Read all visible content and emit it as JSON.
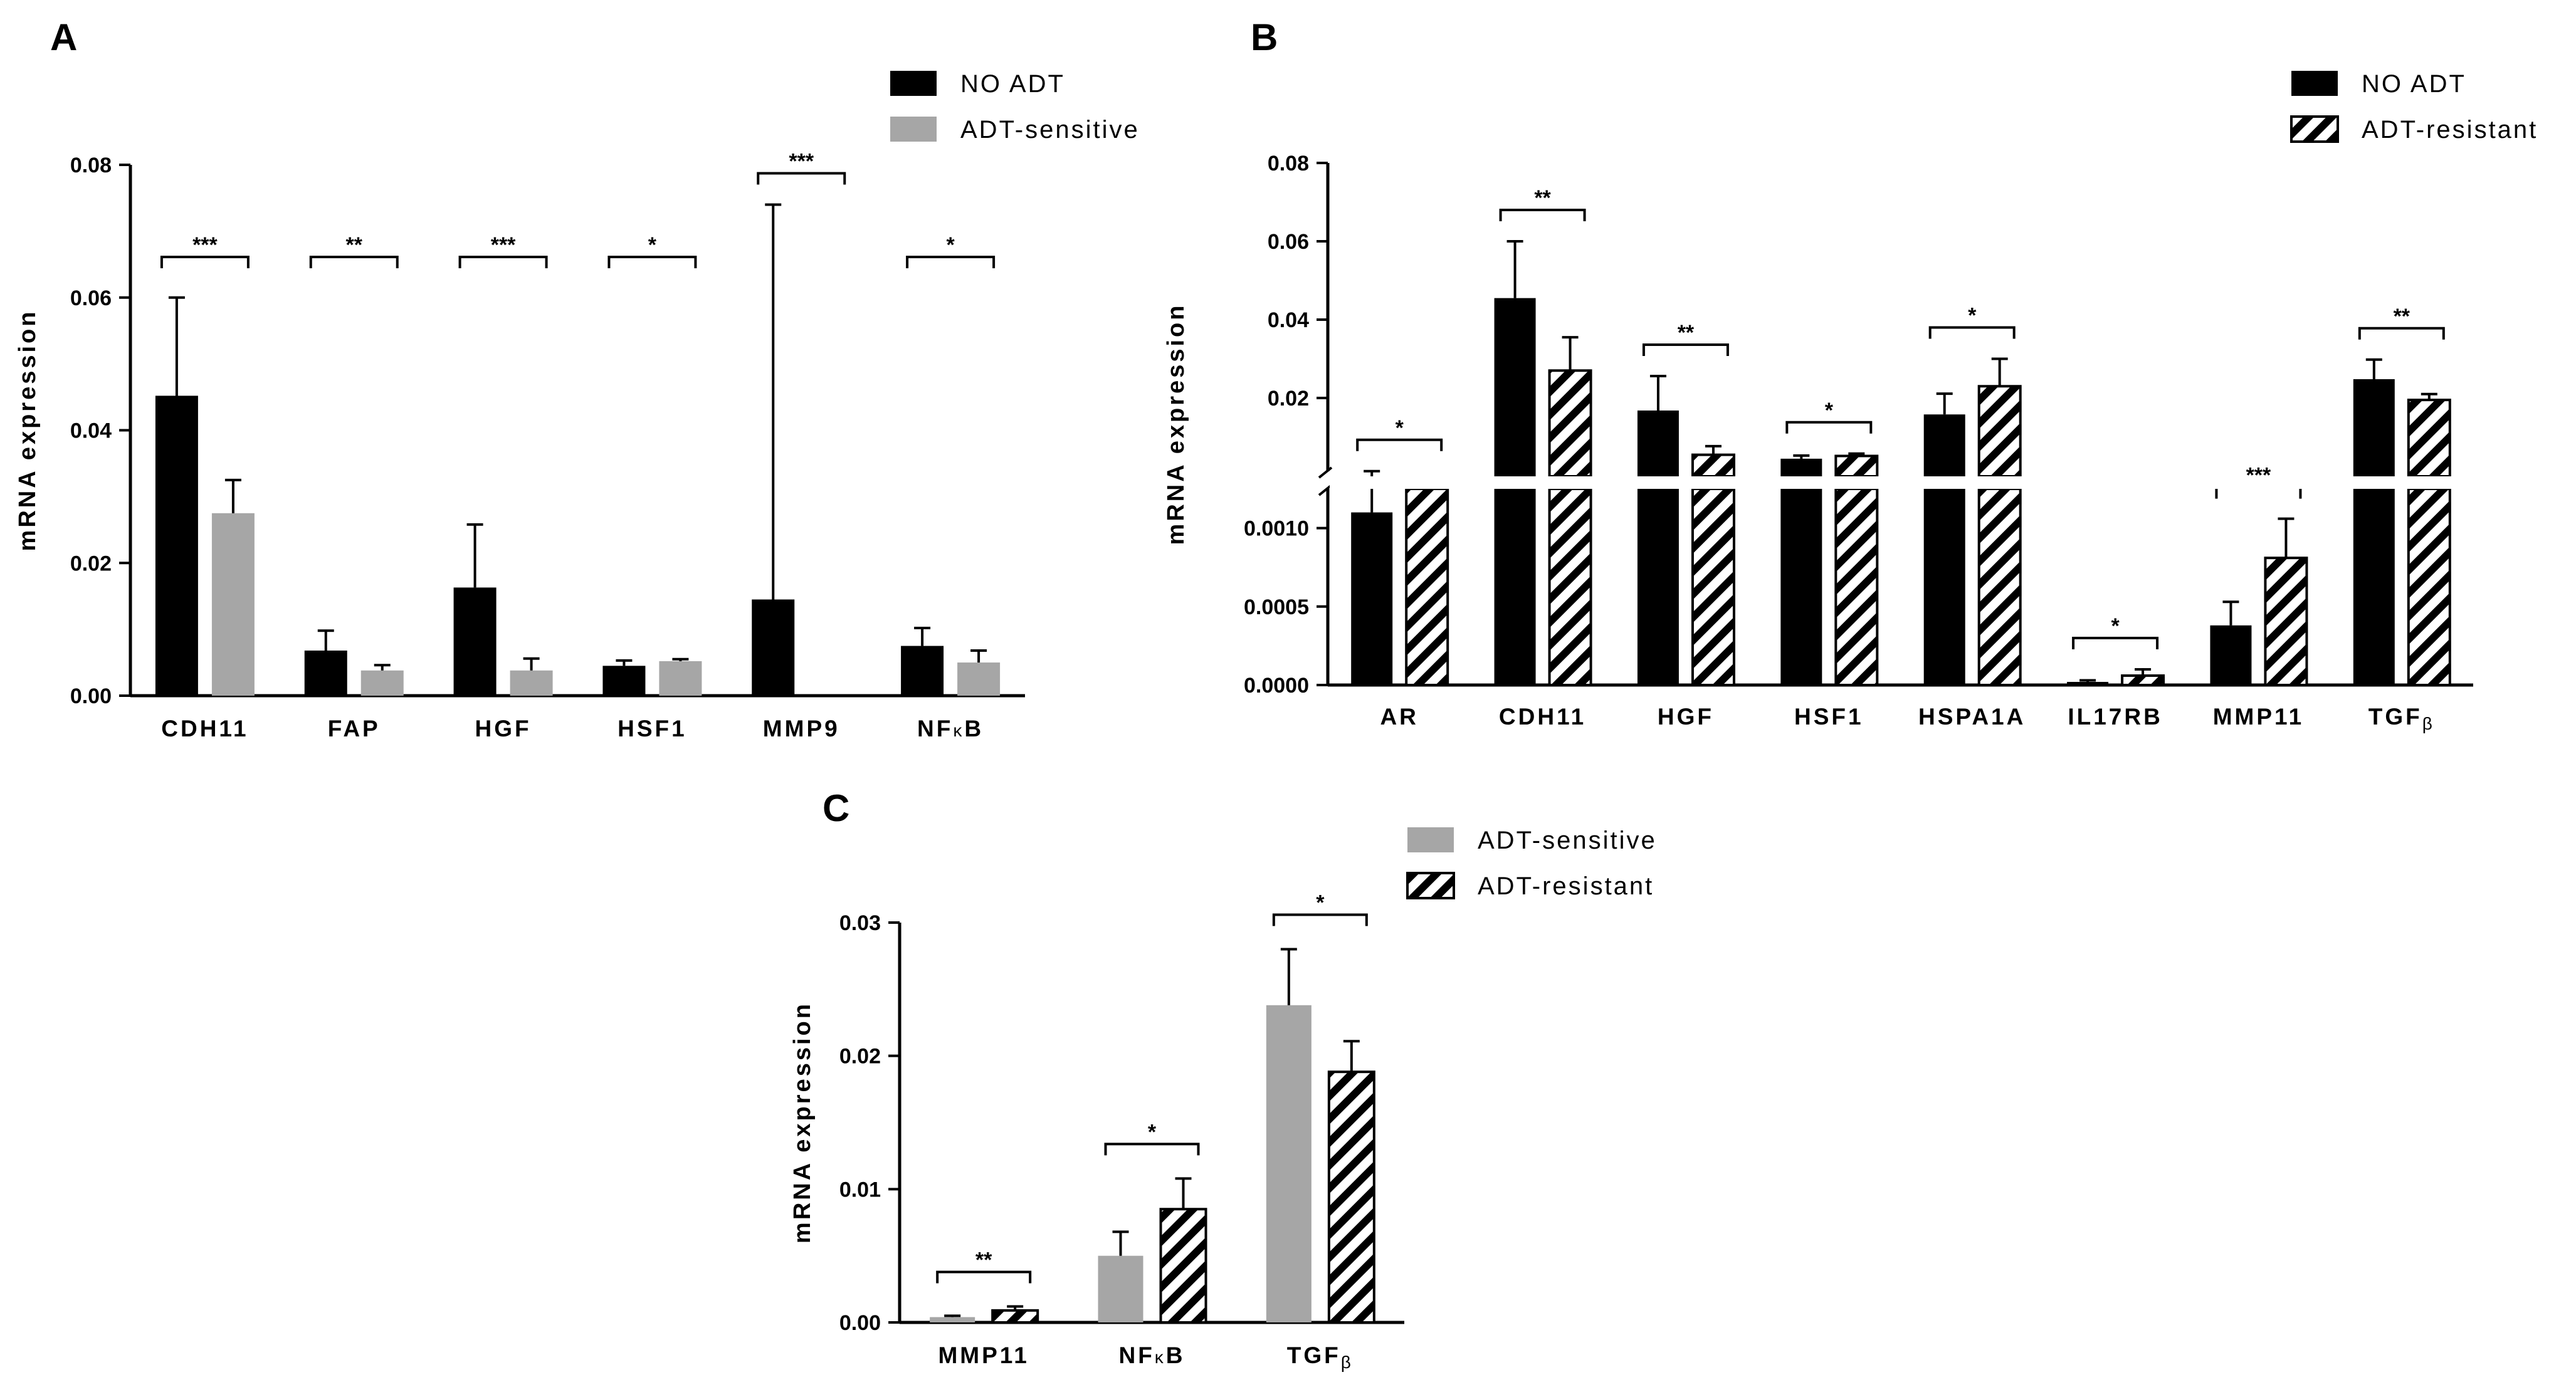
{
  "colors": {
    "no_adt": "#000000",
    "adt_sensitive": "#a6a6a6",
    "adt_resistant_hatch": "#000000",
    "background": "#ffffff"
  },
  "chart_data": [
    {
      "panel": "A",
      "type": "bar",
      "ylabel": "mRNA expression",
      "ylim": [
        0,
        0.08
      ],
      "yticks": [
        "0.00",
        "0.02",
        "0.04",
        "0.06",
        "0.08"
      ],
      "categories": [
        "CDH11",
        "FAP",
        "HGF",
        "HSF1",
        "MMP9",
        "NFκB"
      ],
      "series": [
        {
          "name": "NO ADT",
          "style": "solid-black",
          "values": [
            0.0452,
            0.0068,
            0.0163,
            0.0045,
            0.0145,
            0.0075
          ],
          "errors": [
            0.0148,
            0.003,
            0.0095,
            0.0008,
            0.0595,
            0.0027
          ]
        },
        {
          "name": "ADT-sensitive",
          "style": "solid-gray",
          "values": [
            0.0275,
            0.0038,
            0.0038,
            0.0052,
            0.0,
            0.005
          ],
          "errors": [
            0.005,
            0.0008,
            0.0018,
            0.0003,
            0.0,
            0.0018
          ]
        }
      ],
      "significance": [
        "***",
        "**",
        "***",
        "*",
        "***",
        "*"
      ],
      "legend_position": "top-right"
    },
    {
      "panel": "B",
      "type": "bar",
      "ylabel": "mRNA expression",
      "broken_axis": true,
      "lower_ylim": [
        0,
        0.00125
      ],
      "upper_ylim": [
        0.0,
        0.08
      ],
      "lower_yticks": [
        "0.0000",
        "0.0005",
        "0.0010"
      ],
      "upper_yticks": [
        "0.02",
        "0.04",
        "0.06",
        "0.08"
      ],
      "categories": [
        "AR",
        "CDH11",
        "HGF",
        "HSF1",
        "HSPA1A",
        "IL17RB",
        "MMP11",
        "TGFβ"
      ],
      "series": [
        {
          "name": "NO ADT",
          "style": "solid-black",
          "values": [
            0.0011,
            0.0455,
            0.0168,
            0.0045,
            0.0158,
            2e-05,
            0.00038,
            0.0248
          ],
          "errors": [
            0.00022,
            0.0145,
            0.0088,
            0.0008,
            0.0053,
            1e-05,
            0.00015,
            0.005
          ]
        },
        {
          "name": "ADT-resistant",
          "style": "hatched",
          "values": [
            0.00125,
            0.027,
            0.0055,
            0.0052,
            0.023,
            6e-05,
            0.00081,
            0.0195
          ],
          "errors": [
            0.0,
            0.0085,
            0.0022,
            0.0006,
            0.007,
            4e-05,
            0.00025,
            0.0015
          ]
        }
      ],
      "significance": [
        "*",
        "**",
        "**",
        "*",
        "*",
        "*",
        "***",
        "**"
      ],
      "legend_position": "top-right"
    },
    {
      "panel": "C",
      "type": "bar",
      "ylabel": "mRNA expression",
      "ylim": [
        0,
        0.03
      ],
      "yticks": [
        "0.00",
        "0.01",
        "0.02",
        "0.03"
      ],
      "categories": [
        "MMP11",
        "NFκB",
        "TGFβ"
      ],
      "series": [
        {
          "name": "ADT-sensitive",
          "style": "solid-gray",
          "values": [
            0.0004,
            0.005,
            0.0238
          ],
          "errors": [
            0.0001,
            0.0018,
            0.0042
          ]
        },
        {
          "name": "ADT-resistant",
          "style": "hatched",
          "values": [
            0.0009,
            0.0085,
            0.0188
          ],
          "errors": [
            0.0003,
            0.0023,
            0.0023
          ]
        }
      ],
      "significance": [
        "**",
        "*",
        "*"
      ],
      "legend_position": "top-right"
    }
  ]
}
